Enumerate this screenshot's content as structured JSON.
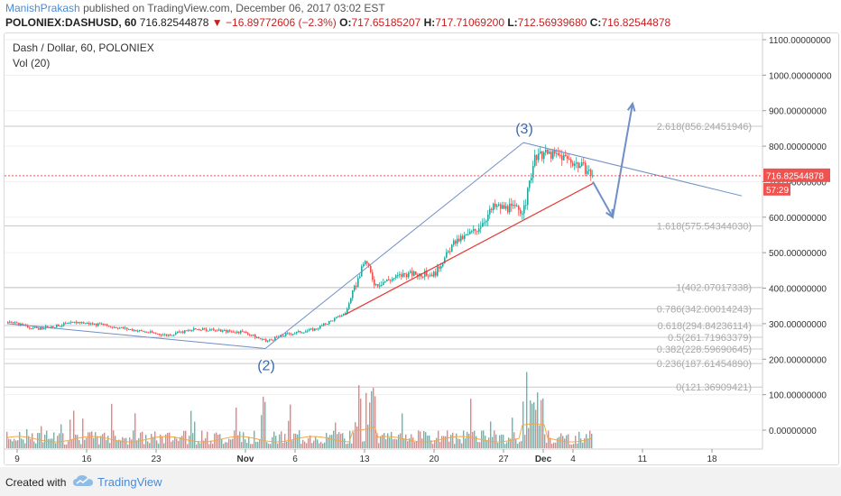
{
  "header": {
    "author": "ManishPrakash",
    "published": "published on TradingView.com, December 06, 2017 03:02 EST",
    "symbol": "POLONIEX:DASHUSD, 60",
    "last": "716.82544878",
    "arrow": "▼",
    "change": "−16.89772606 (−2.3%)",
    "open_label": "O:",
    "open": "717.65185207",
    "high_label": "H:",
    "high": "717.71069200",
    "low_label": "L:",
    "low": "712.56939680",
    "close_label": "C:",
    "close": "716.82544878"
  },
  "legend": {
    "title": "Dash / Dollar, 60, POLONIEX",
    "volume": "Vol (20)"
  },
  "footer": {
    "created_with": "Created with",
    "brand": "TradingView"
  },
  "colors": {
    "up": "#26a69a",
    "down": "#ef5350",
    "wave_line": "#6f8fc6",
    "trend_red": "#e53935",
    "price_tag": "#ef5350",
    "fib_text": "#a8a8a8"
  },
  "chart_data": {
    "type": "candlestick",
    "title": "Dash / Dollar, 60, POLONIEX",
    "ylim": [
      -60,
      1100
    ],
    "y_ticks": [
      "1100.00000000",
      "1000.00000000",
      "900.00000000",
      "800.00000000",
      "700.00000000",
      "600.00000000",
      "500.00000000",
      "400.00000000",
      "300.00000000",
      "200.00000000",
      "100.00000000",
      "0.00000000"
    ],
    "y_tick_values": [
      1100,
      1000,
      900,
      800,
      700,
      600,
      500,
      400,
      300,
      200,
      100,
      0
    ],
    "x_ticks": [
      "9",
      "16",
      "23",
      "Nov",
      "6",
      "13",
      "20",
      "27",
      "Dec",
      "4",
      "11",
      "18"
    ],
    "last_price_label": "716.82544878",
    "countdown_label": "57:29",
    "last_price": 716.82544878,
    "fib_levels": [
      {
        "label": "2.618(856.24451946)",
        "value": 856.24451946
      },
      {
        "label": "1.618(575.54344030)",
        "value": 575.5434403
      },
      {
        "label": "1(402.07017338)",
        "value": 402.07017338
      },
      {
        "label": "0.786(342.00014243)",
        "value": 342.00014243
      },
      {
        "label": "0.618(294.84236114)",
        "value": 294.84236114
      },
      {
        "label": "0.5(261.71963379)",
        "value": 261.71963379
      },
      {
        "label": "0.382(228.59690645)",
        "value": 228.59690645
      },
      {
        "label": "0.236(187.61454890)",
        "value": 187.6145489
      },
      {
        "label": "0(121.36909421)",
        "value": 121.36909421
      }
    ],
    "wave_labels": [
      {
        "label": "(2)",
        "date": "Nov 3",
        "value": 230
      },
      {
        "label": "(3)",
        "date": "Nov 29",
        "value": 805
      }
    ],
    "price_path": [
      {
        "date": "Oct 8",
        "value": 305
      },
      {
        "date": "Oct 11",
        "value": 285
      },
      {
        "date": "Oct 15",
        "value": 305
      },
      {
        "date": "Oct 19",
        "value": 290
      },
      {
        "date": "Oct 24",
        "value": 268
      },
      {
        "date": "Oct 27",
        "value": 285
      },
      {
        "date": "Nov 1",
        "value": 275
      },
      {
        "date": "Nov 3",
        "value": 250
      },
      {
        "date": "Nov 5",
        "value": 270
      },
      {
        "date": "Nov 8",
        "value": 285
      },
      {
        "date": "Nov 11",
        "value": 330
      },
      {
        "date": "Nov 13",
        "value": 480
      },
      {
        "date": "Nov 14",
        "value": 410
      },
      {
        "date": "Nov 17",
        "value": 440
      },
      {
        "date": "Nov 20",
        "value": 440
      },
      {
        "date": "Nov 22",
        "value": 530
      },
      {
        "date": "Nov 24",
        "value": 560
      },
      {
        "date": "Nov 26",
        "value": 630
      },
      {
        "date": "Nov 29",
        "value": 620
      },
      {
        "date": "Nov 30",
        "value": 760
      },
      {
        "date": "Dec 1",
        "value": 780
      },
      {
        "date": "Dec 3",
        "value": 770
      },
      {
        "date": "Dec 5",
        "value": 740
      },
      {
        "date": "Dec 6",
        "value": 716
      }
    ],
    "drawings": [
      {
        "name": "lower-wave-line",
        "points": [
          [
            "Oct 8",
            300
          ],
          [
            "Nov 3",
            230
          ]
        ]
      },
      {
        "name": "wave-2-3-line",
        "points": [
          [
            "Nov 3",
            230
          ],
          [
            "Nov 29",
            810
          ]
        ]
      },
      {
        "name": "upper-trend-line",
        "points": [
          [
            "Nov 29",
            810
          ],
          [
            "Dec 21",
            660
          ]
        ]
      },
      {
        "name": "red-support-line",
        "points": [
          [
            "Nov 11",
            325
          ],
          [
            "Dec 6",
            695
          ]
        ]
      },
      {
        "name": "projection-down",
        "points": [
          [
            "Dec 6",
            700
          ],
          [
            "Dec 8",
            600
          ]
        ]
      },
      {
        "name": "projection-up",
        "points": [
          [
            "Dec 8",
            600
          ],
          [
            "Dec 10",
            920
          ]
        ]
      }
    ]
  }
}
